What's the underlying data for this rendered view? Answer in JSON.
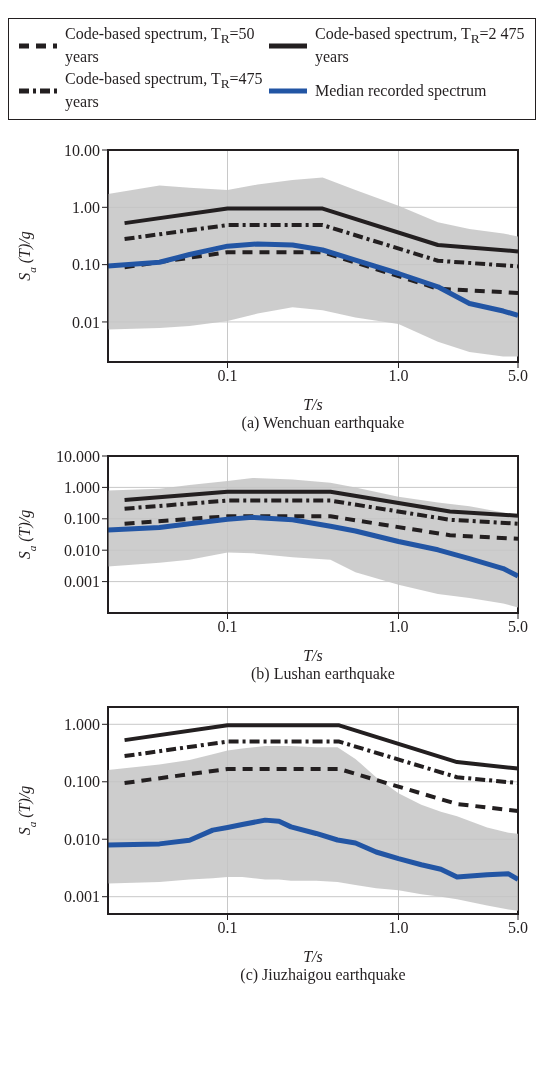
{
  "chart_data": [
    {
      "type": "line",
      "title": "(a) Wenchuan earthquake",
      "xlabel": "T/s",
      "ylabel": "S$_{a}$ (T)/g",
      "log": "xy",
      "grid": true,
      "legend": "top",
      "xlim": [
        0.02,
        5
      ],
      "xticks": [
        {
          "value": 0.1,
          "label": "0.1"
        },
        {
          "value": 1,
          "label": "1.0"
        },
        {
          "value": 5,
          "label": "5.0"
        }
      ],
      "ylim": [
        0.002,
        10
      ],
      "yticks": [
        {
          "value": 0.01,
          "label": "0.01"
        },
        {
          "value": 0.1,
          "label": "0.10"
        },
        {
          "value": 1,
          "label": "1.00"
        },
        {
          "value": 10,
          "label": "10.00"
        }
      ],
      "series": [
        {
          "name": "Code-based spectrum, T$_{R}$=50 years",
          "color": "#231f20",
          "line_style": "dashed",
          "x": [
            0.025,
            0.1,
            0.36,
            1.7,
            5.0
          ],
          "values": [
            0.09,
            0.165,
            0.165,
            0.038,
            0.032
          ]
        },
        {
          "name": "Code-based spectrum, T$_{R}$=2 475 years",
          "color": "#231f20",
          "line_style": "solid",
          "x": [
            0.025,
            0.1,
            0.36,
            1.7,
            5.0
          ],
          "values": [
            0.53,
            0.95,
            0.95,
            0.22,
            0.17
          ]
        },
        {
          "name": "Code-based spectrum, T$_{R}$=475 years",
          "color": "#231f20",
          "line_style": "dashdot",
          "x": [
            0.025,
            0.1,
            0.36,
            1.7,
            5.0
          ],
          "values": [
            0.28,
            0.49,
            0.49,
            0.117,
            0.093
          ]
        },
        {
          "name": "Median recorded spectrum",
          "color": "#2255a4",
          "line_style": "solid",
          "x": [
            0.02,
            0.04,
            0.06,
            0.1,
            0.15,
            0.24,
            0.36,
            0.56,
            1.0,
            1.7,
            2.6,
            4.1,
            5.0
          ],
          "values": [
            0.095,
            0.11,
            0.15,
            0.21,
            0.23,
            0.22,
            0.18,
            0.12,
            0.07,
            0.041,
            0.021,
            0.0155,
            0.013
          ],
          "upper": [
            1.7,
            2.4,
            2.2,
            2.0,
            2.5,
            3.0,
            3.3,
            2.0,
            1.07,
            0.55,
            0.42,
            0.35,
            0.31
          ],
          "lower": [
            0.0074,
            0.0078,
            0.0085,
            0.0104,
            0.014,
            0.018,
            0.016,
            0.012,
            0.0092,
            0.0045,
            0.003,
            0.0025,
            0.0025
          ]
        }
      ]
    },
    {
      "type": "line",
      "title": "(b) Lushan earthquake",
      "xlabel": "T/s",
      "ylabel": "S$_{a}$ (T)/g",
      "log": "xy",
      "grid": true,
      "xlim": [
        0.02,
        5
      ],
      "xticks": [
        {
          "value": 0.1,
          "label": "0.1"
        },
        {
          "value": 1,
          "label": "1.0"
        },
        {
          "value": 5,
          "label": "5.0"
        }
      ],
      "ylim": [
        0.0001,
        10
      ],
      "yticks": [
        {
          "value": 0.001,
          "label": "0.001"
        },
        {
          "value": 0.01,
          "label": "0.010"
        },
        {
          "value": 0.1,
          "label": "0.100"
        },
        {
          "value": 1,
          "label": "1.000"
        },
        {
          "value": 10,
          "label": "10.000"
        }
      ],
      "series": [
        {
          "color": "#231f20",
          "line_style": "dashed",
          "x": [
            0.025,
            0.1,
            0.4,
            2.0,
            5.0
          ],
          "values": [
            0.07,
            0.12,
            0.12,
            0.03,
            0.023
          ]
        },
        {
          "color": "#231f20",
          "line_style": "solid",
          "x": [
            0.025,
            0.1,
            0.4,
            2.0,
            5.0
          ],
          "values": [
            0.4,
            0.73,
            0.73,
            0.17,
            0.126
          ]
        },
        {
          "color": "#231f20",
          "line_style": "dashdot",
          "x": [
            0.025,
            0.1,
            0.4,
            2.0,
            5.0
          ],
          "values": [
            0.21,
            0.38,
            0.38,
            0.093,
            0.07
          ]
        },
        {
          "color": "#2255a4",
          "line_style": "solid",
          "x": [
            0.02,
            0.04,
            0.06,
            0.1,
            0.14,
            0.24,
            0.4,
            0.56,
            1.0,
            1.7,
            2.6,
            4.1,
            5.0
          ],
          "values": [
            0.044,
            0.053,
            0.07,
            0.096,
            0.111,
            0.093,
            0.058,
            0.041,
            0.019,
            0.0103,
            0.0054,
            0.0026,
            0.0015
          ],
          "upper": [
            0.8,
            0.9,
            1.2,
            1.6,
            2.0,
            1.8,
            1.4,
            1.0,
            0.5,
            0.33,
            0.25,
            0.16,
            0.13
          ],
          "lower": [
            0.003,
            0.004,
            0.005,
            0.0085,
            0.008,
            0.006,
            0.005,
            0.002,
            0.0008,
            0.0004,
            0.0003,
            0.0002,
            0.00015
          ]
        }
      ]
    },
    {
      "type": "line",
      "title": "(c) Jiuzhaigou earthquake",
      "xlabel": "T/s",
      "ylabel": "S$_{a}$ (T)/g",
      "log": "xy",
      "grid": true,
      "xlim": [
        0.02,
        5
      ],
      "xticks": [
        {
          "value": 0.1,
          "label": "0.1"
        },
        {
          "value": 1,
          "label": "1.0"
        },
        {
          "value": 5,
          "label": "5.0"
        }
      ],
      "ylim": [
        0.0005,
        2
      ],
      "yticks": [
        {
          "value": 0.001,
          "label": "0.001"
        },
        {
          "value": 0.01,
          "label": "0.010"
        },
        {
          "value": 0.1,
          "label": "0.100"
        },
        {
          "value": 1,
          "label": "1.000"
        }
      ],
      "series": [
        {
          "color": "#231f20",
          "line_style": "dashed",
          "x": [
            0.025,
            0.1,
            0.45,
            2.2,
            5.0
          ],
          "values": [
            0.095,
            0.167,
            0.167,
            0.041,
            0.031
          ]
        },
        {
          "color": "#231f20",
          "line_style": "solid",
          "x": [
            0.025,
            0.1,
            0.45,
            2.2,
            5.0
          ],
          "values": [
            0.53,
            0.96,
            0.96,
            0.22,
            0.17
          ]
        },
        {
          "color": "#231f20",
          "line_style": "dashdot",
          "x": [
            0.025,
            0.1,
            0.45,
            2.2,
            5.0
          ],
          "values": [
            0.28,
            0.5,
            0.5,
            0.12,
            0.095
          ]
        },
        {
          "color": "#2255a4",
          "line_style": "solid",
          "x": [
            0.02,
            0.04,
            0.06,
            0.082,
            0.1,
            0.122,
            0.166,
            0.2,
            0.235,
            0.33,
            0.44,
            0.56,
            0.74,
            1.0,
            1.36,
            1.77,
            2.2,
            3.3,
            4.4,
            5.0
          ],
          "values": [
            0.0079,
            0.0083,
            0.0096,
            0.0144,
            0.016,
            0.018,
            0.0215,
            0.0205,
            0.0164,
            0.0126,
            0.0097,
            0.0086,
            0.006,
            0.0046,
            0.0036,
            0.003,
            0.0022,
            0.0024,
            0.0025,
            0.002
          ],
          "upper": [
            0.16,
            0.2,
            0.24,
            0.3,
            0.35,
            0.38,
            0.42,
            0.42,
            0.42,
            0.4,
            0.4,
            0.25,
            0.12,
            0.063,
            0.04,
            0.03,
            0.025,
            0.016,
            0.013,
            0.0125
          ],
          "lower": [
            0.0017,
            0.0018,
            0.002,
            0.0021,
            0.0022,
            0.0022,
            0.002,
            0.002,
            0.0019,
            0.0019,
            0.0018,
            0.0016,
            0.0014,
            0.0013,
            0.0011,
            0.001,
            0.0009,
            0.0007,
            0.0006,
            0.00057
          ]
        }
      ]
    }
  ]
}
